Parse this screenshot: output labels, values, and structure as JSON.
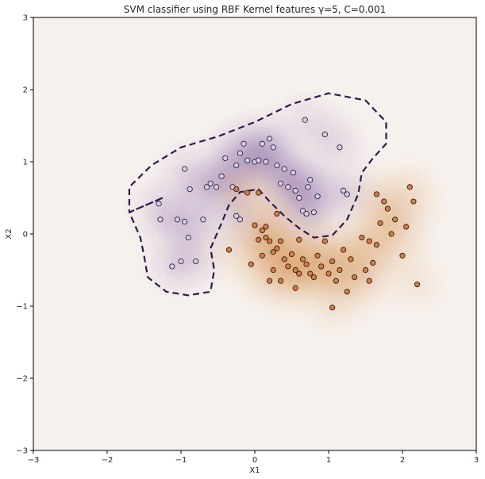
{
  "chart_data": {
    "type": "scatter",
    "title": "SVM classifier using RBF Kernel features γ=5, C=0.001",
    "xlabel": "X1",
    "ylabel": "X2",
    "xlim": [
      -3,
      3
    ],
    "ylim": [
      -3,
      3
    ],
    "x_ticks": [
      "−3",
      "−2",
      "−1",
      "0",
      "1",
      "2",
      "3"
    ],
    "y_ticks": [
      "−3",
      "−2",
      "−1",
      "0",
      "1",
      "2",
      "3"
    ],
    "grid": false,
    "legend": "none",
    "background_color": "#f7f1ee",
    "decision_boundary_style": "dashed",
    "colors": {
      "class_a_region": "#5b2d8a",
      "class_b_region": "#c9721c",
      "class_a_points": "#d8c8ee",
      "class_b_points": "#d77a3f",
      "boundary": "#2d1b4a"
    },
    "series": [
      {
        "class": "upper",
        "points": [
          [
            -1.3,
            0.42
          ],
          [
            -1.28,
            0.2
          ],
          [
            -1.05,
            0.2
          ],
          [
            -0.95,
            0.17
          ],
          [
            -0.88,
            0.62
          ],
          [
            -0.95,
            0.9
          ],
          [
            -0.9,
            -0.05
          ],
          [
            -0.7,
            0.2
          ],
          [
            -0.65,
            0.65
          ],
          [
            -0.6,
            0.7
          ],
          [
            -0.52,
            0.65
          ],
          [
            -0.45,
            0.8
          ],
          [
            -0.4,
            1.05
          ],
          [
            -0.3,
            0.65
          ],
          [
            -0.25,
            0.95
          ],
          [
            -0.2,
            1.12
          ],
          [
            -0.15,
            1.25
          ],
          [
            -0.1,
            1.02
          ],
          [
            0.0,
            1.0
          ],
          [
            0.05,
            1.02
          ],
          [
            0.1,
            1.25
          ],
          [
            0.15,
            1.0
          ],
          [
            0.2,
            1.32
          ],
          [
            0.25,
            1.2
          ],
          [
            0.3,
            0.95
          ],
          [
            0.35,
            0.7
          ],
          [
            0.4,
            0.9
          ],
          [
            0.45,
            0.65
          ],
          [
            0.52,
            0.85
          ],
          [
            0.55,
            0.6
          ],
          [
            0.6,
            0.5
          ],
          [
            0.65,
            0.32
          ],
          [
            0.7,
            0.28
          ],
          [
            0.72,
            0.65
          ],
          [
            0.75,
            0.75
          ],
          [
            0.8,
            0.3
          ],
          [
            0.85,
            0.52
          ],
          [
            0.95,
            1.38
          ],
          [
            1.15,
            1.2
          ],
          [
            1.2,
            0.6
          ],
          [
            1.25,
            0.55
          ],
          [
            0.68,
            1.58
          ],
          [
            -1.12,
            -0.45
          ],
          [
            -1.0,
            -0.38
          ],
          [
            -0.8,
            -0.38
          ],
          [
            -0.2,
            0.2
          ],
          [
            -0.25,
            0.25
          ]
        ]
      },
      {
        "class": "lower",
        "points": [
          [
            -0.35,
            -0.22
          ],
          [
            -0.25,
            0.62
          ],
          [
            -0.1,
            0.57
          ],
          [
            0.05,
            0.57
          ],
          [
            0.1,
            0.05
          ],
          [
            0.15,
            0.1
          ],
          [
            0.2,
            -0.1
          ],
          [
            0.25,
            -0.25
          ],
          [
            0.3,
            0.28
          ],
          [
            0.35,
            -0.1
          ],
          [
            -0.05,
            -0.42
          ],
          [
            0.0,
            0.12
          ],
          [
            0.05,
            -0.08
          ],
          [
            0.1,
            -0.3
          ],
          [
            0.2,
            -0.65
          ],
          [
            0.25,
            -0.5
          ],
          [
            0.3,
            -0.2
          ],
          [
            0.4,
            -0.35
          ],
          [
            0.45,
            -0.45
          ],
          [
            0.5,
            -0.28
          ],
          [
            0.55,
            -0.5
          ],
          [
            0.6,
            -0.08
          ],
          [
            0.65,
            -0.35
          ],
          [
            0.7,
            -0.42
          ],
          [
            0.75,
            -0.55
          ],
          [
            0.8,
            -0.6
          ],
          [
            0.85,
            -0.3
          ],
          [
            0.95,
            -0.1
          ],
          [
            1.0,
            -0.55
          ],
          [
            1.05,
            -0.38
          ],
          [
            1.1,
            -0.65
          ],
          [
            1.15,
            -0.5
          ],
          [
            1.2,
            -0.22
          ],
          [
            1.25,
            -0.8
          ],
          [
            1.3,
            -0.35
          ],
          [
            1.35,
            -0.6
          ],
          [
            1.45,
            -0.05
          ],
          [
            1.5,
            -0.5
          ],
          [
            1.55,
            -0.1
          ],
          [
            1.6,
            -0.4
          ],
          [
            1.65,
            -0.15
          ],
          [
            1.7,
            0.15
          ],
          [
            1.75,
            0.45
          ],
          [
            1.8,
            0.35
          ],
          [
            1.85,
            0.0
          ],
          [
            1.9,
            0.2
          ],
          [
            2.0,
            -0.3
          ],
          [
            2.05,
            0.1
          ],
          [
            2.1,
            0.65
          ],
          [
            2.15,
            0.45
          ],
          [
            2.2,
            -0.7
          ],
          [
            1.05,
            -1.02
          ],
          [
            0.55,
            -0.75
          ],
          [
            0.35,
            -0.65
          ],
          [
            1.55,
            -0.65
          ],
          [
            1.65,
            0.55
          ],
          [
            0.15,
            -0.05
          ],
          [
            0.6,
            -0.55
          ],
          [
            0.9,
            -0.45
          ]
        ]
      }
    ],
    "decision_boundary": [
      [
        -1.25,
        0.5
      ],
      [
        -1.7,
        0.3
      ],
      [
        -1.55,
        -0.05
      ],
      [
        -1.5,
        -0.3
      ],
      [
        -1.45,
        -0.6
      ],
      [
        -1.2,
        -0.8
      ],
      [
        -0.9,
        -0.85
      ],
      [
        -0.6,
        -0.8
      ],
      [
        -0.55,
        -0.5
      ],
      [
        -0.6,
        -0.2
      ],
      [
        -0.45,
        0.15
      ],
      [
        -0.35,
        0.4
      ],
      [
        -0.2,
        0.58
      ],
      [
        0.05,
        0.62
      ],
      [
        0.2,
        0.45
      ],
      [
        0.4,
        0.25
      ],
      [
        0.6,
        0.08
      ],
      [
        0.8,
        -0.05
      ],
      [
        1.05,
        -0.02
      ],
      [
        1.25,
        0.2
      ],
      [
        1.4,
        0.55
      ],
      [
        1.45,
        0.85
      ],
      [
        1.6,
        1.05
      ],
      [
        1.78,
        1.25
      ],
      [
        1.78,
        1.55
      ],
      [
        1.5,
        1.85
      ],
      [
        1.0,
        1.95
      ],
      [
        0.5,
        1.8
      ],
      [
        0.0,
        1.55
      ],
      [
        -0.5,
        1.35
      ],
      [
        -1.0,
        1.2
      ],
      [
        -1.4,
        0.95
      ],
      [
        -1.7,
        0.65
      ],
      [
        -1.7,
        0.3
      ]
    ]
  }
}
